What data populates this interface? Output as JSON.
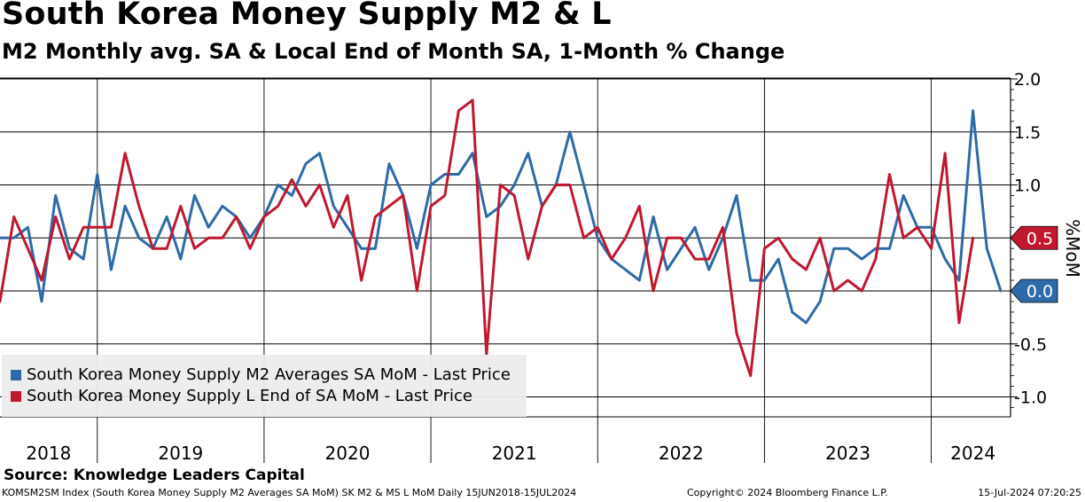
{
  "chart_data": {
    "type": "line",
    "title": "South Korea Money Supply M2 & L",
    "subtitle": "M2 Monthly avg. SA & Local End of Month SA, 1-Month % Change",
    "ylabel": "%MoM",
    "ylim": [
      -1.2,
      2.1
    ],
    "yticks": [
      -1.0,
      -0.5,
      0.0,
      0.5,
      1.0,
      1.5,
      2.0
    ],
    "ytick_labels": [
      "-1.0",
      "-0.5",
      "0.0",
      "0.5",
      "1.0",
      "1.5",
      "2.0"
    ],
    "x_start": "2018-06",
    "x_end": "2024-06",
    "year_labels": [
      "2018",
      "2019",
      "2020",
      "2021",
      "2022",
      "2023",
      "2024"
    ],
    "series": [
      {
        "name": "South Korea Money Supply M2 Averages SA MoM - Last Price",
        "color": "#2e6aa8",
        "last_label": "0.0",
        "values": [
          0.5,
          0.5,
          0.6,
          -0.1,
          0.9,
          0.4,
          0.3,
          1.1,
          0.2,
          0.8,
          0.5,
          0.4,
          0.7,
          0.3,
          0.9,
          0.6,
          0.8,
          0.7,
          0.5,
          0.7,
          1.0,
          0.9,
          1.2,
          1.3,
          0.8,
          0.6,
          0.4,
          0.4,
          1.2,
          0.9,
          0.4,
          1.0,
          1.1,
          1.1,
          1.3,
          0.7,
          0.8,
          1.0,
          1.3,
          0.8,
          1.0,
          1.5,
          1.0,
          0.5,
          0.3,
          0.2,
          0.1,
          0.7,
          0.2,
          0.4,
          0.6,
          0.2,
          0.5,
          0.9,
          0.1,
          0.1,
          0.3,
          -0.2,
          -0.3,
          -0.1,
          0.4,
          0.4,
          0.3,
          0.4,
          0.4,
          0.9,
          0.6,
          0.6,
          0.3,
          0.1,
          1.7,
          0.4,
          0.0
        ]
      },
      {
        "name": "South Korea Money Supply L End of SA MoM - Last Price",
        "color": "#c0182f",
        "last_label": "0.5",
        "values": [
          -0.1,
          0.7,
          0.4,
          0.1,
          0.7,
          0.3,
          0.6,
          0.6,
          0.6,
          1.3,
          0.8,
          0.4,
          0.4,
          0.8,
          0.4,
          0.5,
          0.5,
          0.7,
          0.4,
          0.7,
          0.8,
          1.05,
          0.8,
          1.0,
          0.6,
          0.9,
          0.1,
          0.7,
          0.8,
          0.9,
          0.0,
          0.8,
          0.9,
          1.7,
          1.8,
          -0.6,
          1.0,
          0.9,
          0.3,
          0.8,
          1.0,
          1.0,
          0.5,
          0.6,
          0.3,
          0.5,
          0.8,
          0.0,
          0.5,
          0.5,
          0.3,
          0.3,
          0.6,
          -0.4,
          -0.8,
          0.4,
          0.5,
          0.3,
          0.2,
          0.5,
          0.0,
          0.1,
          0.0,
          0.3,
          1.1,
          0.5,
          0.6,
          0.4,
          1.3,
          -0.3,
          0.5
        ]
      }
    ]
  },
  "source_text": "Source: Knowledge Leaders Capital",
  "footer": {
    "left": "KOMSM2SM Index (South Korea Money Supply M2 Averages SA MoM) SK M2 & MS L MoM  Daily 15JUN2018-15JUL2024",
    "middle": "Copyright© 2024 Bloomberg Finance L.P.",
    "right": "15-Jul-2024 07:20:25"
  }
}
